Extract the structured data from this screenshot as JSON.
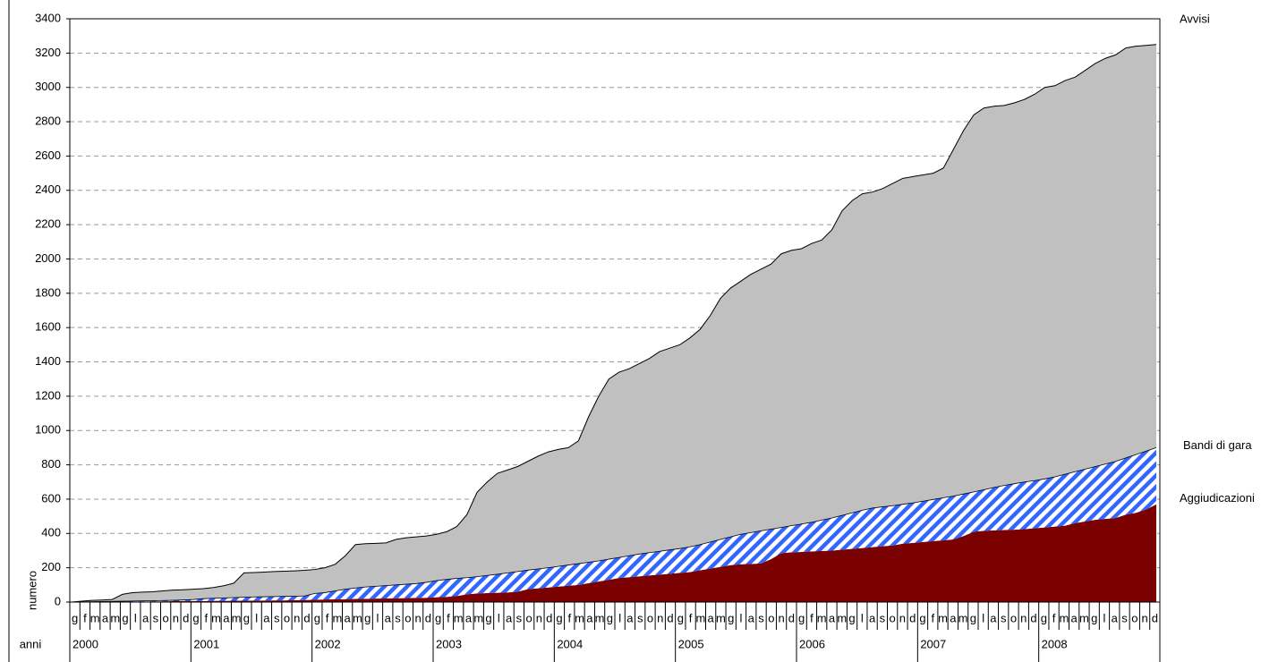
{
  "chart_data": {
    "type": "area",
    "stacked": true,
    "ylabel": "numero",
    "xlabel": "anni",
    "categories": [
      "g",
      "f",
      "m",
      "a",
      "m",
      "g",
      "l",
      "a",
      "s",
      "o",
      "n",
      "d",
      "g",
      "f",
      "m",
      "a",
      "m",
      "g",
      "l",
      "a",
      "s",
      "o",
      "n",
      "d",
      "g",
      "f",
      "m",
      "a",
      "m",
      "g",
      "l",
      "a",
      "s",
      "o",
      "n",
      "d",
      "g",
      "f",
      "m",
      "a",
      "m",
      "g",
      "l",
      "a",
      "s",
      "o",
      "n",
      "d",
      "g",
      "f",
      "m",
      "a",
      "m",
      "g",
      "l",
      "a",
      "s",
      "o",
      "n",
      "d",
      "g",
      "f",
      "m",
      "a",
      "m",
      "g",
      "l",
      "a",
      "s",
      "o",
      "n",
      "d",
      "g",
      "f",
      "m",
      "a",
      "m",
      "g",
      "l",
      "a",
      "s",
      "o",
      "n",
      "d",
      "g",
      "f",
      "m",
      "a",
      "m",
      "g",
      "l",
      "a",
      "s",
      "o",
      "n",
      "d",
      "g",
      "f",
      "m",
      "a",
      "m",
      "g",
      "l",
      "a",
      "s",
      "o",
      "n",
      "d"
    ],
    "years": [
      "2000",
      "2001",
      "2002",
      "2003",
      "2004",
      "2005",
      "2006",
      "2007",
      "2008"
    ],
    "series": [
      {
        "name": "Aggiudicazioni",
        "color": "#7b0000",
        "values": [
          0,
          0,
          1,
          1,
          2,
          2,
          3,
          3,
          4,
          4,
          5,
          5,
          6,
          6,
          7,
          7,
          8,
          8,
          9,
          9,
          10,
          10,
          11,
          12,
          14,
          15,
          16,
          17,
          18,
          19,
          20,
          21,
          22,
          23,
          24,
          25,
          28,
          30,
          35,
          45,
          50,
          52,
          54,
          56,
          60,
          75,
          80,
          85,
          90,
          95,
          100,
          110,
          120,
          130,
          140,
          145,
          150,
          155,
          160,
          165,
          170,
          175,
          185,
          195,
          205,
          215,
          220,
          222,
          225,
          250,
          285,
          290,
          292,
          295,
          298,
          300,
          305,
          310,
          315,
          320,
          325,
          330,
          340,
          345,
          350,
          355,
          360,
          365,
          385,
          410,
          415,
          418,
          420,
          422,
          425,
          430,
          435,
          440,
          445,
          460,
          470,
          480,
          485,
          490,
          510,
          520,
          540,
          570
        ]
      },
      {
        "name": "Bandi di gara",
        "color": "#3366ff",
        "hatch": true,
        "values": [
          0,
          1,
          1,
          2,
          2,
          3,
          3,
          4,
          4,
          5,
          5,
          7,
          9,
          14,
          15,
          17,
          18,
          20,
          21,
          22,
          22,
          23,
          23,
          24,
          36,
          40,
          49,
          58,
          64,
          69,
          72,
          75,
          78,
          81,
          84,
          90,
          97,
          102,
          103,
          97,
          98,
          103,
          108,
          114,
          118,
          111,
          113,
          115,
          118,
          121,
          124,
          122,
          120,
          120,
          120,
          125,
          130,
          133,
          136,
          139,
          142,
          147,
          150,
          155,
          160,
          165,
          175,
          183,
          190,
          175,
          150,
          155,
          163,
          170,
          180,
          190,
          200,
          210,
          220,
          228,
          230,
          232,
          230,
          233,
          238,
          243,
          248,
          253,
          245,
          232,
          240,
          250,
          260,
          268,
          275,
          278,
          283,
          290,
          300,
          300,
          305,
          310,
          320,
          330,
          330,
          340,
          340,
          330
        ]
      },
      {
        "name": "Avvisi",
        "color": "#c0c0c0",
        "values": [
          0,
          4,
          8,
          9,
          11,
          40,
          49,
          51,
          52,
          56,
          60,
          60,
          60,
          58,
          63,
          71,
          84,
          142,
          142,
          144,
          146,
          147,
          148,
          149,
          140,
          145,
          155,
          195,
          253,
          252,
          250,
          249,
          265,
          271,
          272,
          270,
          270,
          278,
          302,
          368,
          492,
          545,
          588,
          600,
          612,
          634,
          657,
          675,
          682,
          684,
          716,
          848,
          960,
          1050,
          1080,
          1090,
          1110,
          1132,
          1164,
          1176,
          1188,
          1218,
          1255,
          1320,
          1405,
          1450,
          1475,
          1505,
          1525,
          1545,
          1595,
          1605,
          1605,
          1625,
          1632,
          1680,
          1775,
          1820,
          1845,
          1842,
          1855,
          1878,
          1900,
          1902,
          1902,
          1902,
          1922,
          2022,
          2120,
          2198,
          2225,
          2222,
          2215,
          2220,
          2230,
          2252,
          2282,
          2280,
          2295,
          2300,
          2325,
          2350,
          2365,
          2370,
          2390,
          2380,
          2365,
          2350
        ]
      }
    ],
    "ylim": [
      0,
      3400
    ],
    "yticks": [
      0,
      200,
      400,
      600,
      800,
      1000,
      1200,
      1400,
      1600,
      1800,
      2000,
      2200,
      2400,
      2600,
      2800,
      3000,
      3200,
      3400
    ],
    "grid": true
  }
}
